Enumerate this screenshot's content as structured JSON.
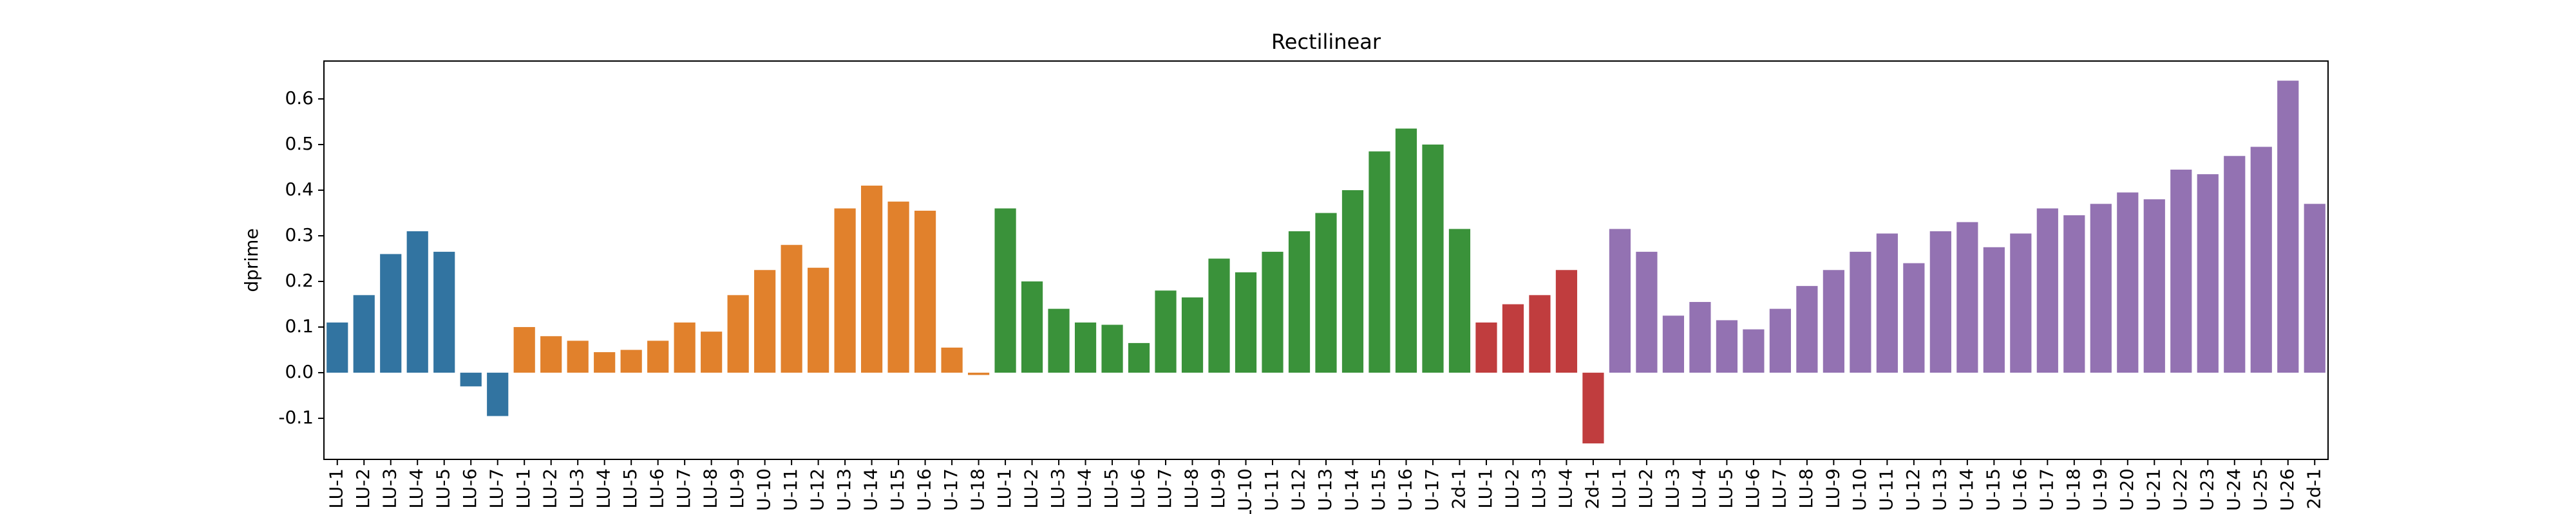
{
  "chart_data": {
    "type": "bar",
    "title": "Rectilinear",
    "y_label": "dprime",
    "ylim": [
      -0.19,
      0.683
    ],
    "yticks": [
      -0.1,
      0.0,
      0.1,
      0.2,
      0.3,
      0.4,
      0.5,
      0.6
    ],
    "series": [
      {
        "color": "#3274a1",
        "categories": [
          "LU-1",
          "LU-2",
          "LU-3",
          "LU-4",
          "LU-5",
          "LU-6",
          "LU-7"
        ],
        "values": [
          0.11,
          0.17,
          0.26,
          0.31,
          0.265,
          -0.03,
          -0.095
        ]
      },
      {
        "color": "#e1812c",
        "categories": [
          "LU-1",
          "LU-2",
          "LU-3",
          "LU-4",
          "LU-5",
          "LU-6",
          "LU-7",
          "LU-8",
          "LU-9",
          "U-10",
          "U-11",
          "U-12",
          "U-13",
          "U-14",
          "U-15",
          "U-16",
          "U-17",
          "U-18"
        ],
        "values": [
          0.1,
          0.08,
          0.07,
          0.045,
          0.05,
          0.07,
          0.11,
          0.09,
          0.17,
          0.225,
          0.28,
          0.23,
          0.36,
          0.41,
          0.375,
          0.355,
          0.055,
          -0.005
        ]
      },
      {
        "color": "#3a923a",
        "categories": [
          "LU-1",
          "LU-2",
          "LU-3",
          "LU-4",
          "LU-5",
          "LU-6",
          "LU-7",
          "LU-8",
          "LU-9",
          "LU-10",
          "U-11",
          "U-12",
          "U-13",
          "U-14",
          "U-15",
          "U-16",
          "U-17",
          "2d-1"
        ],
        "values": [
          0.36,
          0.2,
          0.14,
          0.11,
          0.105,
          0.065,
          0.18,
          0.165,
          0.25,
          0.22,
          0.265,
          0.31,
          0.35,
          0.4,
          0.485,
          0.535,
          0.5,
          0.315
        ]
      },
      {
        "color": "#c03d3e",
        "categories": [
          "LU-1",
          "LU-2",
          "LU-3",
          "LU-4",
          "2d-1"
        ],
        "values": [
          0.11,
          0.15,
          0.17,
          0.225,
          -0.155
        ]
      },
      {
        "color": "#9372b2",
        "categories": [
          "LU-1",
          "LU-2",
          "LU-3",
          "LU-4",
          "LU-5",
          "LU-6",
          "LU-7",
          "LU-8",
          "LU-9",
          "U-10",
          "U-11",
          "U-12",
          "U-13",
          "U-14",
          "U-15",
          "U-16",
          "U-17",
          "U-18",
          "U-19",
          "U-20",
          "U-21",
          "U-22",
          "U-23",
          "U-24",
          "U-25",
          "U-26",
          "2d-1"
        ],
        "values": [
          0.315,
          0.265,
          0.125,
          0.155,
          0.115,
          0.095,
          0.14,
          0.19,
          0.225,
          0.265,
          0.305,
          0.24,
          0.31,
          0.33,
          0.275,
          0.305,
          0.36,
          0.345,
          0.37,
          0.395,
          0.38,
          0.445,
          0.435,
          0.475,
          0.495,
          0.64,
          0.37
        ]
      }
    ]
  }
}
